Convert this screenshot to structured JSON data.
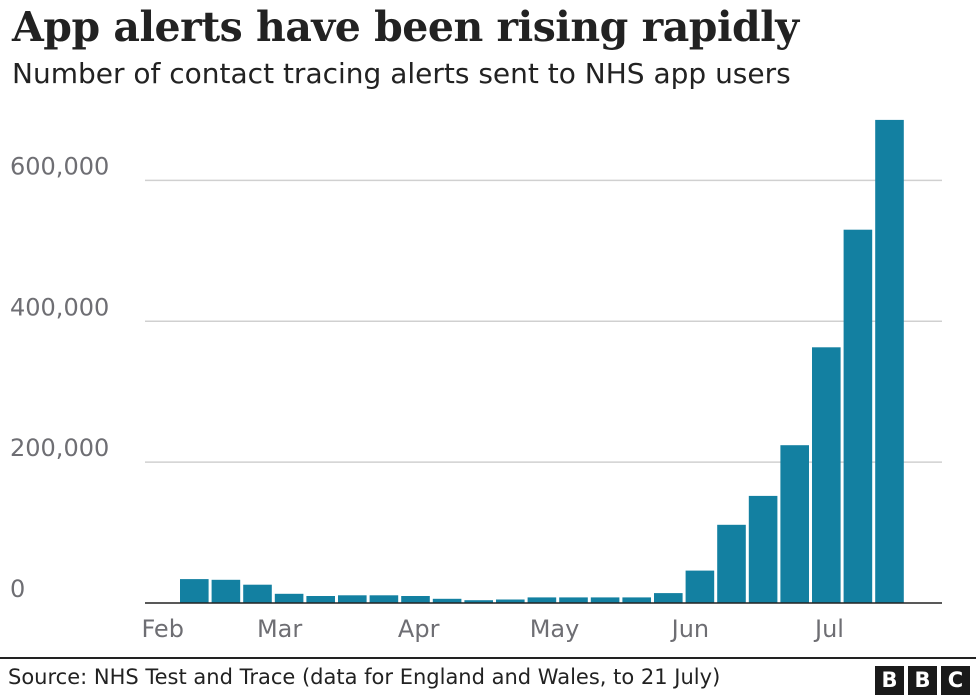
{
  "header": {
    "title": "App alerts have been rising rapidly",
    "subtitle": "Number of contact tracing alerts sent to NHS app users"
  },
  "footer": {
    "source": "Source: NHS Test and Trace (data for England and Wales, to 21 July)",
    "logo_letters": [
      "B",
      "B",
      "C"
    ]
  },
  "colors": {
    "bar": "#1380a1",
    "grid": "#d0d0d0",
    "axis": "#222222",
    "tick_text": "#6e6e73"
  },
  "chart_data": {
    "type": "bar",
    "title": "App alerts have been rising rapidly",
    "subtitle": "Number of contact tracing alerts sent to NHS app users",
    "xlabel": "",
    "ylabel": "",
    "ylim": [
      0,
      700000
    ],
    "grid": true,
    "y_ticks": [
      0,
      200000,
      400000,
      600000
    ],
    "y_tick_labels": [
      "0",
      "200,000",
      "400,000",
      "600,000"
    ],
    "x_tick_labels": [
      "Feb",
      "Mar",
      "Apr",
      "May",
      "Jun",
      "Jul"
    ],
    "x_tick_bar_positions": [
      -1,
      2.7,
      7.1,
      11.4,
      15.7,
      20.1
    ],
    "values": [
      34000,
      33000,
      26000,
      13000,
      10000,
      11000,
      11000,
      10000,
      6000,
      4000,
      5000,
      8000,
      8000,
      8000,
      8000,
      14000,
      46000,
      111000,
      152000,
      224000,
      363000,
      530000,
      686000
    ]
  }
}
